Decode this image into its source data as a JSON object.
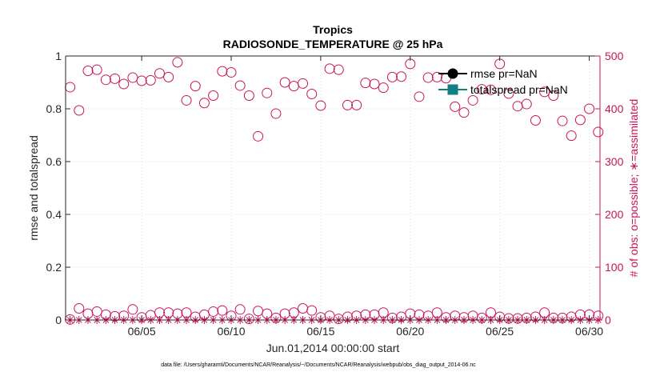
{
  "chart_data": {
    "type": "scatter",
    "title": "Tropics",
    "subtitle": "RADIOSONDE_TEMPERATURE @ 25 hPa",
    "xlabel": "Jun.01,2014 00:00:00 start",
    "ylabel": "rmse and totalspread",
    "ylabel_right": "# of obs: o=possible; ∗=assimilated",
    "footnote": "data file: /Users/gharamti/Documents/NCAR/Reanalysis/~/Documents/NCAR/Reanalysis/webpub/obs_diag_output_2014-06.nc",
    "xlim": [
      0.75,
      30.6
    ],
    "ylim": [
      0,
      1
    ],
    "ylim_right": [
      0,
      500
    ],
    "xticks": [
      {
        "value": 5,
        "label": "06/05"
      },
      {
        "value": 10,
        "label": "06/10"
      },
      {
        "value": 15,
        "label": "06/15"
      },
      {
        "value": 20,
        "label": "06/20"
      },
      {
        "value": 25,
        "label": "06/25"
      },
      {
        "value": 30,
        "label": "06/30"
      }
    ],
    "yticks": [
      {
        "value": 0,
        "label": "0"
      },
      {
        "value": 0.2,
        "label": "0.2"
      },
      {
        "value": 0.4,
        "label": "0.4"
      },
      {
        "value": 0.6,
        "label": "0.6"
      },
      {
        "value": 0.8,
        "label": "0.8"
      },
      {
        "value": 1,
        "label": "1"
      }
    ],
    "yticks_right": [
      {
        "value": 0,
        "label": "0"
      },
      {
        "value": 100,
        "label": "100"
      },
      {
        "value": 200,
        "label": "200"
      },
      {
        "value": 300,
        "label": "300"
      },
      {
        "value": 400,
        "label": "400"
      },
      {
        "value": 500,
        "label": "500"
      }
    ],
    "legend": [
      {
        "name": "rmse pr=NaN",
        "marker": "circle",
        "color": "#000000"
      },
      {
        "name": "totalspread pr=NaN",
        "marker": "square",
        "color": "#0f7f7f"
      }
    ],
    "legend_position": "top-right",
    "colors": {
      "obs": "#c8145a",
      "rmse": "#000000",
      "totalspread": "#0f7f7f"
    },
    "series": [
      {
        "name": "possible (00Z)",
        "axis": "right",
        "marker": "open-circle",
        "x": [
          1,
          2,
          3,
          4,
          5,
          6,
          7,
          8,
          9,
          10,
          11,
          12,
          13,
          14,
          15,
          16,
          17,
          18,
          19,
          20,
          21,
          22,
          23,
          24,
          25,
          26,
          27,
          28,
          29,
          30
        ],
        "values": [
          441,
          472,
          455,
          447,
          453,
          467,
          488,
          443,
          425,
          469,
          425,
          430,
          450,
          448,
          406,
          474,
          407,
          447,
          460,
          485,
          459,
          458,
          393,
          437,
          485,
          405,
          378,
          425,
          349,
          400
        ]
      },
      {
        "name": "possible (12Z)",
        "axis": "right",
        "marker": "open-circle",
        "x": [
          1.5,
          2.5,
          3.5,
          4.5,
          5.5,
          6.5,
          7.5,
          8.5,
          9.5,
          10.5,
          11.5,
          12.5,
          13.5,
          14.5,
          15.5,
          16.5,
          17.5,
          18.5,
          19.5,
          20.5,
          21.5,
          22.5,
          23.5,
          24.5,
          25.5,
          26.5,
          27.5,
          28.5,
          29.5,
          30.5
        ],
        "values": [
          397,
          474,
          457,
          459,
          454,
          460,
          416,
          411,
          471,
          444,
          348,
          391,
          443,
          428,
          476,
          407,
          449,
          440,
          461,
          423,
          460,
          404,
          416,
          436,
          429,
          409,
          432,
          377,
          379,
          356
        ]
      },
      {
        "name": "possible (low, 00Z)",
        "axis": "right",
        "marker": "open-circle",
        "x": [
          1,
          2,
          3,
          4,
          5,
          6,
          7,
          8,
          9,
          10,
          11,
          12,
          13,
          14,
          15,
          16,
          17,
          18,
          19,
          20,
          21,
          22,
          23,
          24,
          25,
          26,
          27,
          28,
          29,
          30
        ],
        "values": [
          1,
          12,
          10,
          8,
          5,
          14,
          12,
          6,
          16,
          8,
          2,
          12,
          12,
          22,
          5,
          2,
          8,
          10,
          4,
          12,
          8,
          5,
          5,
          4,
          6,
          3,
          6,
          4,
          6,
          10
        ]
      },
      {
        "name": "possible (low, 12Z)",
        "axis": "right",
        "marker": "open-circle",
        "x": [
          1.5,
          2.5,
          3.5,
          4.5,
          5.5,
          6.5,
          7.5,
          8.5,
          9.5,
          10.5,
          11.5,
          12.5,
          13.5,
          14.5,
          15.5,
          16.5,
          17.5,
          18.5,
          19.5,
          20.5,
          21.5,
          22.5,
          23.5,
          24.5,
          25.5,
          26.5,
          27.5,
          28.5,
          29.5,
          30.5
        ],
        "values": [
          22,
          16,
          7,
          20,
          9,
          14,
          14,
          10,
          18,
          20,
          17,
          4,
          14,
          18,
          8,
          6,
          10,
          14,
          6,
          10,
          14,
          8,
          8,
          14,
          3,
          4,
          14,
          4,
          10,
          8
        ]
      },
      {
        "name": "assimilated",
        "axis": "right",
        "marker": "asterisk",
        "x": [
          1,
          1.5,
          2,
          2.5,
          3,
          3.5,
          4,
          4.5,
          5,
          5.5,
          6,
          6.5,
          7,
          7.5,
          8,
          8.5,
          9,
          9.5,
          10,
          10.5,
          11,
          11.5,
          12,
          12.5,
          13,
          13.5,
          14,
          14.5,
          15,
          15.5,
          16,
          16.5,
          17,
          17.5,
          18,
          18.5,
          19,
          19.5,
          20,
          20.5,
          21,
          21.5,
          22,
          22.5,
          23,
          23.5,
          24,
          24.5,
          25,
          25.5,
          26,
          26.5,
          27,
          27.5,
          28,
          28.5,
          29,
          29.5,
          30,
          30.5
        ],
        "values": [
          0,
          0,
          0,
          0,
          0,
          0,
          0,
          0,
          0,
          0,
          0,
          0,
          0,
          0,
          0,
          0,
          0,
          0,
          0,
          0,
          0,
          0,
          0,
          0,
          0,
          0,
          0,
          0,
          0,
          0,
          0,
          0,
          0,
          0,
          0,
          0,
          0,
          0,
          0,
          0,
          0,
          0,
          0,
          0,
          0,
          0,
          0,
          0,
          0,
          0,
          0,
          0,
          0,
          0,
          0,
          0,
          0,
          0,
          0,
          0
        ]
      }
    ]
  }
}
